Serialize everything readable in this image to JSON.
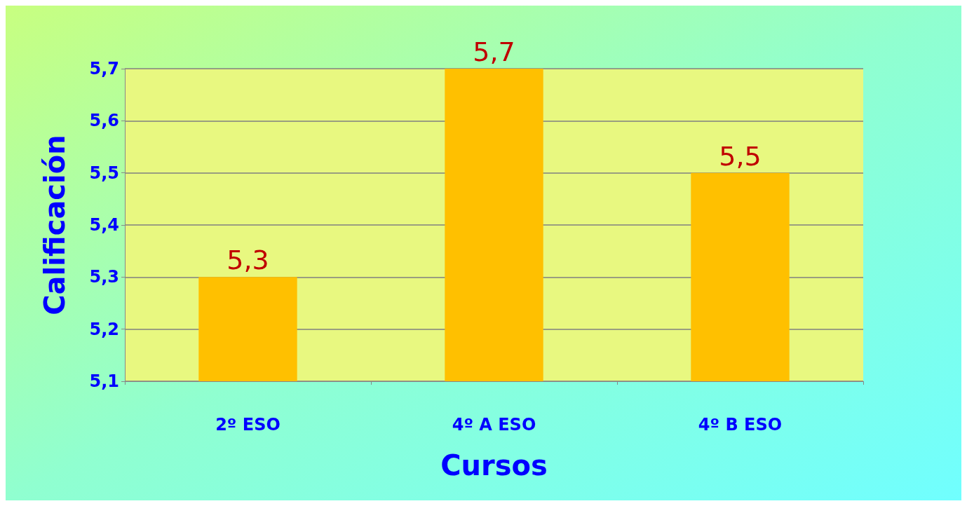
{
  "chart_data": {
    "type": "bar",
    "xlabel": "Cursos",
    "ylabel": "Calificación",
    "categories": [
      "2º ESO",
      "4º A ESO",
      "4º B ESO"
    ],
    "values": [
      5.3,
      5.7,
      5.5
    ],
    "value_labels": [
      "5,3",
      "5,7",
      "5,5"
    ],
    "color": "#ffc000",
    "ylim": [
      5.1,
      5.7
    ],
    "yticks": [
      {
        "value": 5.1,
        "label": "5,1"
      },
      {
        "value": 5.2,
        "label": "5,2"
      },
      {
        "value": 5.3,
        "label": "5,3"
      },
      {
        "value": 5.4,
        "label": "5,4"
      },
      {
        "value": 5.5,
        "label": "5,5"
      },
      {
        "value": 5.6,
        "label": "5,6"
      },
      {
        "value": 5.7,
        "label": "5,7"
      }
    ],
    "grid": "y"
  }
}
